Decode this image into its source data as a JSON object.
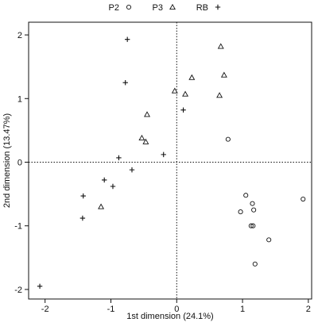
{
  "chart_data": {
    "type": "scatter",
    "title": "",
    "xlabel": "1st dimension (24.1%)",
    "ylabel": "2nd dimension (13.47%)",
    "xlim": [
      -2.25,
      2.05
    ],
    "ylim": [
      -2.15,
      2.2
    ],
    "x_ticks": [
      -2,
      -1,
      0,
      1,
      2
    ],
    "y_ticks": [
      -2,
      -1,
      0,
      1,
      2
    ],
    "reference_lines": {
      "x": 0,
      "y": 0,
      "style": "dotted"
    },
    "grid": false,
    "legend_position": "top",
    "series": [
      {
        "name": "P2",
        "marker": "circle",
        "points": [
          [
            0.78,
            0.36
          ],
          [
            1.05,
            -0.52
          ],
          [
            0.97,
            -0.78
          ],
          [
            1.15,
            -0.65
          ],
          [
            1.17,
            -0.75
          ],
          [
            1.13,
            -1.0
          ],
          [
            1.16,
            -1.0
          ],
          [
            1.92,
            -0.58
          ],
          [
            1.4,
            -1.22
          ],
          [
            1.19,
            -1.6
          ]
        ]
      },
      {
        "name": "P3",
        "marker": "triangle",
        "points": [
          [
            0.67,
            1.82
          ],
          [
            0.72,
            1.37
          ],
          [
            0.23,
            1.33
          ],
          [
            0.65,
            1.05
          ],
          [
            -0.03,
            1.12
          ],
          [
            0.13,
            1.07
          ],
          [
            -0.45,
            0.75
          ],
          [
            -0.53,
            0.38
          ],
          [
            -0.47,
            0.32
          ],
          [
            -1.15,
            -0.7
          ]
        ]
      },
      {
        "name": "RB",
        "marker": "plus",
        "points": [
          [
            -0.75,
            1.93
          ],
          [
            -0.78,
            1.25
          ],
          [
            0.1,
            0.82
          ],
          [
            -0.2,
            0.12
          ],
          [
            -0.88,
            0.07
          ],
          [
            -0.68,
            -0.12
          ],
          [
            -1.1,
            -0.28
          ],
          [
            -0.97,
            -0.38
          ],
          [
            -1.42,
            -0.53
          ],
          [
            -1.43,
            -0.88
          ],
          [
            -2.08,
            -1.95
          ]
        ]
      }
    ]
  }
}
